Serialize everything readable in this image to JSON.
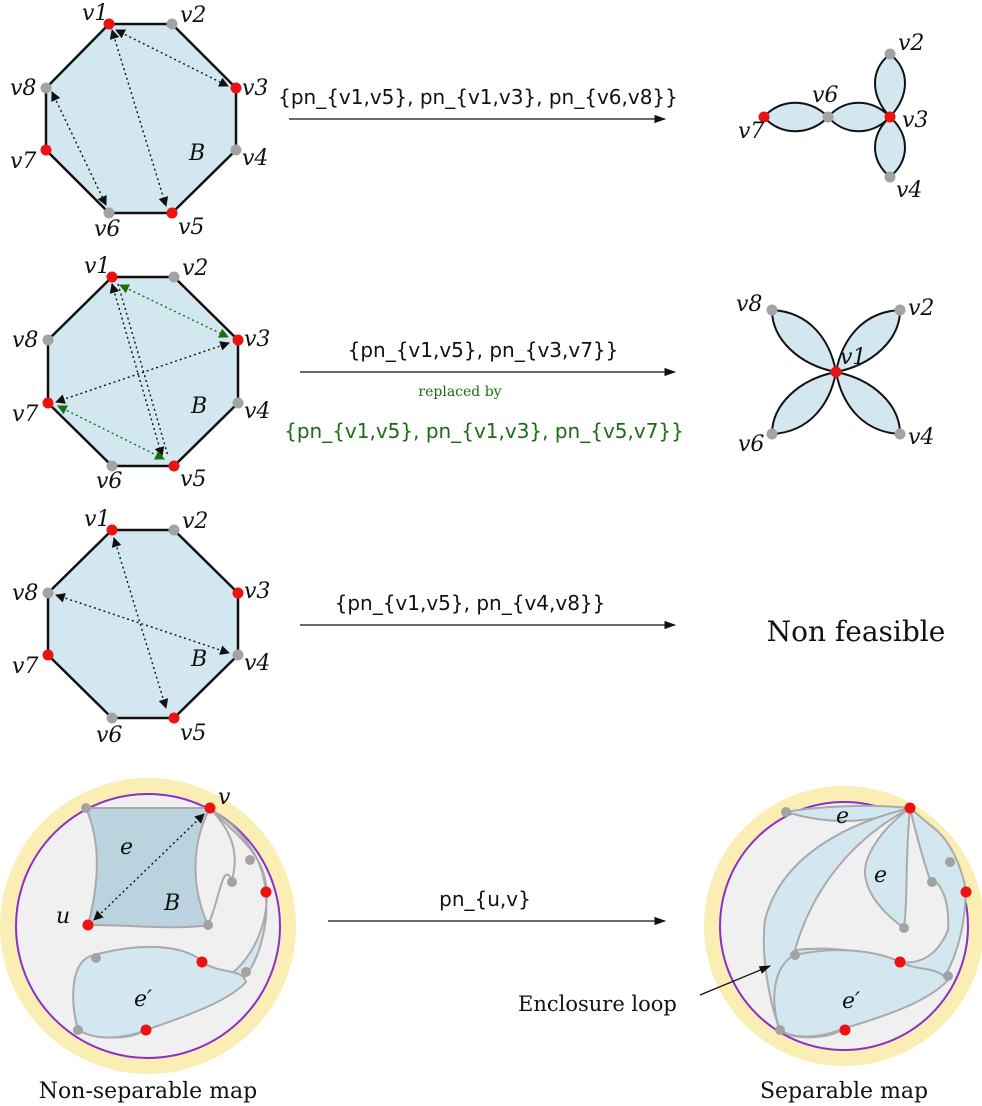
{
  "vertex_labels": {
    "v1": "v1",
    "v2": "v2",
    "v3": "v3",
    "v4": "v4",
    "v5": "v5",
    "v6": "v6",
    "v7": "v7",
    "v8": "v8"
  },
  "block_label": "B",
  "row1": {
    "arrow_label": "{pn_{v1,v5}, pn_{v1,v3}, pn_{v6,v8}}",
    "result_labels": {
      "v2": "v2",
      "v3": "v3",
      "v4": "v4",
      "v6": "v6",
      "v7": "v7"
    }
  },
  "row2": {
    "arrow_label": "{pn_{v1,v5}, pn_{v3,v7}}",
    "replaced_by": "replaced by",
    "replacement_label": "{pn_{v1,v5}, pn_{v1,v3}, pn_{v5,v7}}",
    "result_labels": {
      "v8": "v8",
      "v2": "v2",
      "v1": "v1",
      "v6": "v6",
      "v4": "v4"
    }
  },
  "row3": {
    "arrow_label": "{pn_{v1,v5}, pn_{v4,v8}}",
    "result": "Non feasible"
  },
  "row4": {
    "arrow_label": "pn_{u,v}",
    "left_caption": "Non-separable map",
    "right_caption": "Separable map",
    "enclosure_label": "Enclosure loop",
    "vertex_u": "u",
    "vertex_v": "v",
    "face_e": "e",
    "face_e_prime": "e′",
    "block_B": "B"
  },
  "colors": {
    "face_fill": "#d2e7f0",
    "red_vertex": "#ee1111",
    "gray_vertex": "#a3a3a3",
    "green_arrow": "#1a6e12",
    "outer_ring": "#fbeeb4",
    "circle": "#8b2fc9",
    "map_bg": "#f0f0f0"
  }
}
